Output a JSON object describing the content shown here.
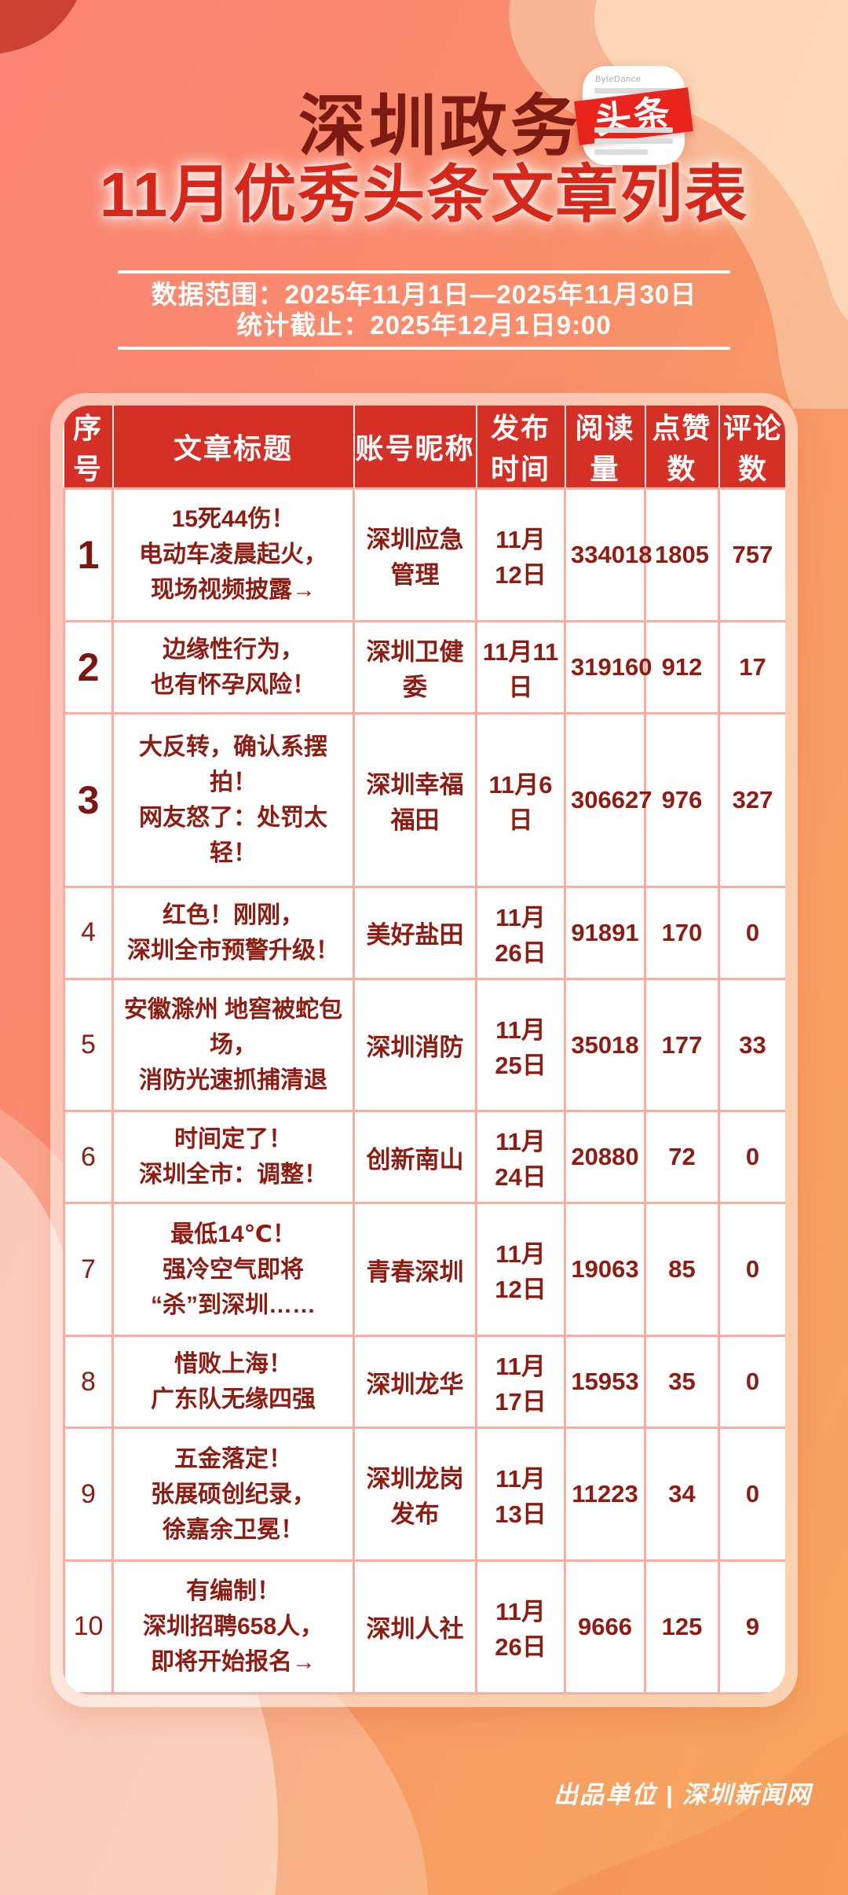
{
  "header": {
    "brand": "深圳政务",
    "title": "11月优秀头条文章列表",
    "logo": {
      "name": "toutiao-app-icon",
      "label": "头条",
      "brand_text": "ByteDance"
    }
  },
  "banner": {
    "line1": "数据范围：2025年11月1日—2025年11月30日",
    "line2": "统计截止：2025年12月1日9:00"
  },
  "table": {
    "columns": [
      "序号",
      "文章标题",
      "账号昵称",
      "发布时间",
      "阅读量",
      "点赞数",
      "评论数"
    ],
    "rows": [
      {
        "rank": "1",
        "top3": true,
        "title": "15死44伤！\n电动车凌晨起火，\n现场视频披露→",
        "account": "深圳应急管理",
        "date": "11月12日",
        "reads": "334018",
        "likes": "1805",
        "comments": "757"
      },
      {
        "rank": "2",
        "top3": true,
        "title": "边缘性行为，\n也有怀孕风险！",
        "account": "深圳卫健委",
        "date": "11月11日",
        "reads": "319160",
        "likes": "912",
        "comments": "17"
      },
      {
        "rank": "3",
        "top3": true,
        "title": "大反转，确认系摆拍！\n网友怒了：处罚太轻！",
        "account": "深圳幸福福田",
        "date": "11月6日",
        "reads": "306627",
        "likes": "976",
        "comments": "327"
      },
      {
        "rank": "4",
        "top3": false,
        "title": "红色！刚刚，\n深圳全市预警升级！",
        "account": "美好盐田",
        "date": "11月26日",
        "reads": "91891",
        "likes": "170",
        "comments": "0"
      },
      {
        "rank": "5",
        "top3": false,
        "title": "安徽滁州 地窖被蛇包场，\n消防光速抓捕清退",
        "account": "深圳消防",
        "date": "11月25日",
        "reads": "35018",
        "likes": "177",
        "comments": "33"
      },
      {
        "rank": "6",
        "top3": false,
        "title": "时间定了！\n深圳全市：调整！",
        "account": "创新南山",
        "date": "11月24日",
        "reads": "20880",
        "likes": "72",
        "comments": "0"
      },
      {
        "rank": "7",
        "top3": false,
        "title": "最低14℃！\n强冷空气即将\n“杀”到深圳……",
        "account": "青春深圳",
        "date": "11月12日",
        "reads": "19063",
        "likes": "85",
        "comments": "0"
      },
      {
        "rank": "8",
        "top3": false,
        "title": "惜败上海！\n广东队无缘四强",
        "account": "深圳龙华",
        "date": "11月17日",
        "reads": "15953",
        "likes": "35",
        "comments": "0"
      },
      {
        "rank": "9",
        "top3": false,
        "title": "五金落定！\n张展硕创纪录，\n徐嘉余卫冕！",
        "account": "深圳龙岗发布",
        "date": "11月13日",
        "reads": "11223",
        "likes": "34",
        "comments": "0"
      },
      {
        "rank": "10",
        "top3": false,
        "title": "有编制！\n深圳招聘658人，\n即将开始报名→",
        "account": "深圳人社",
        "date": "11月26日",
        "reads": "9666",
        "likes": "125",
        "comments": "9"
      }
    ]
  },
  "footer": {
    "credit": "出品单位 | 深圳新闻网"
  },
  "colors": {
    "accent_red": "#d43026",
    "title_red": "#d5281a",
    "brand_dark_red": "#7d1a12",
    "cell_text_red": "#8e1c12",
    "cell_border_salmon": "#f9ae9f",
    "background_left": "#fb8374",
    "background_right": "#f6a55c"
  }
}
